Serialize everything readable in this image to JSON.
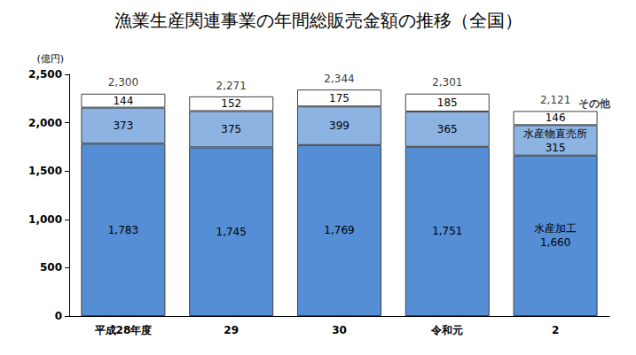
{
  "chart_data": {
    "type": "bar",
    "title": "漁業生産関連事業の年間総販売金額の推移（全国）",
    "y_label": "(億円)",
    "categories": [
      "平成28年度",
      "29",
      "30",
      "令和元",
      "2"
    ],
    "stacked": true,
    "data_labels": true,
    "grid": false,
    "series": [
      {
        "name": "水産加工",
        "color": "#558ed5",
        "values": [
          1783,
          1745,
          1769,
          1751,
          1660
        ],
        "value_labels": [
          "1,783",
          "1,745",
          "1,769",
          "1,751",
          "1,660"
        ]
      },
      {
        "name": "水産物直売所",
        "color": "#8db3e2",
        "values": [
          373,
          375,
          399,
          365,
          315
        ]
      },
      {
        "name": "その他",
        "color": "#ffffff",
        "values": [
          144,
          152,
          175,
          185,
          146
        ]
      }
    ],
    "totals": {
      "values": [
        2300,
        2271,
        2344,
        2301,
        2121
      ],
      "value_labels": [
        "2,300",
        "2,271",
        "2,344",
        "2,301",
        "2,121"
      ]
    },
    "ylim": [
      0,
      2500
    ],
    "yticks": [
      0,
      500,
      {
        "value": 1000,
        "label": "1,000"
      },
      {
        "value": 1500,
        "label": "1,500"
      },
      {
        "value": 2000,
        "label": "2,000"
      },
      {
        "value": 2500,
        "label": "2,500"
      }
    ]
  }
}
